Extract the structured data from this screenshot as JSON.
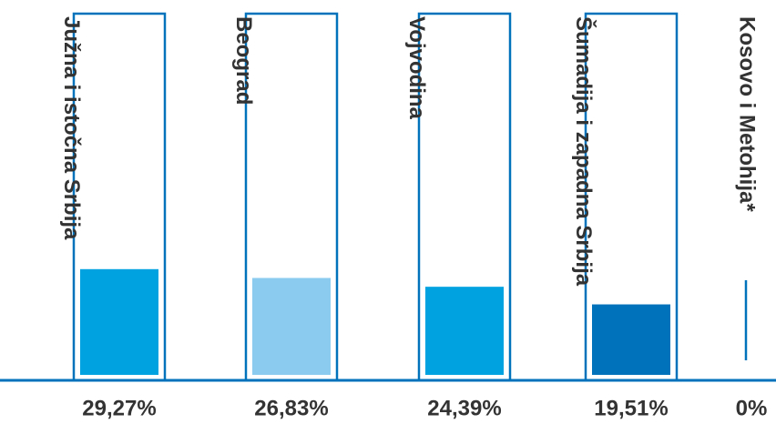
{
  "chart_data": {
    "type": "bar",
    "categories": [
      "Južna i istočna Srbija",
      "Beograd",
      "Vojvodina",
      "Šumadija i zapadna Srbija",
      "Kosovo i Metohija*"
    ],
    "values": [
      29.27,
      26.83,
      24.39,
      19.51,
      0
    ],
    "value_labels": [
      "29,27%",
      "26,83%",
      "24,39%",
      "19,51%",
      "0%"
    ],
    "colors": [
      "#00a3e0",
      "#8ccbf0",
      "#00a3e0",
      "#0072bc",
      "#0072bc"
    ],
    "outline_color": "#0072bc",
    "ylim": [
      0,
      100
    ],
    "title": "",
    "xlabel": "",
    "ylabel": ""
  }
}
